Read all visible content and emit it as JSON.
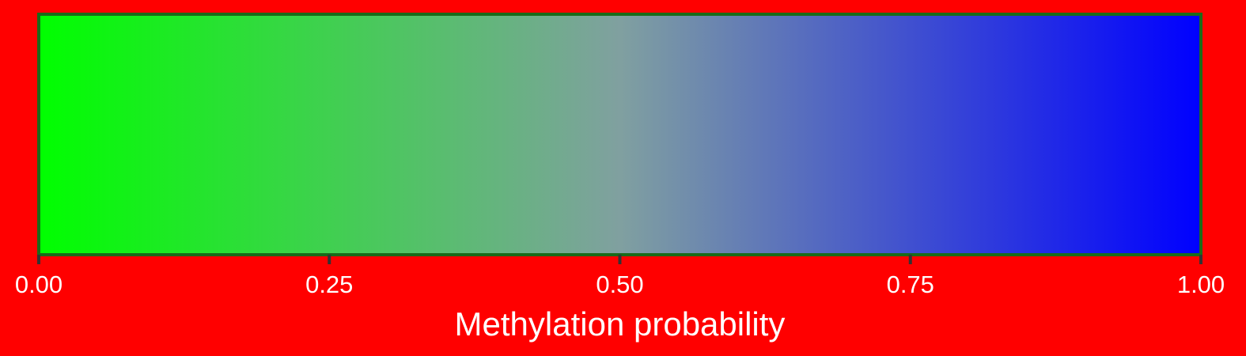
{
  "chart_data": {
    "type": "heatmap",
    "title": "",
    "xlabel": "Methylation probability",
    "ylabel": "",
    "xlim": [
      0,
      1
    ],
    "ticks": [
      0,
      0.25,
      0.5,
      0.75,
      1
    ],
    "tick_labels": [
      "0.00",
      "0.25",
      "0.50",
      "0.75",
      "1.00"
    ],
    "gradient_stops": [
      {
        "value": 0,
        "color": "#00ff00"
      },
      {
        "value": 0.5,
        "color": "#80a0a0"
      },
      {
        "value": 1,
        "color": "#0000ff"
      }
    ],
    "grid": false,
    "legend": "none"
  },
  "colors": {
    "background": "#ff0000",
    "border": "#1a6b1a",
    "tick_mark": "#333333",
    "text": "#ffffff"
  }
}
